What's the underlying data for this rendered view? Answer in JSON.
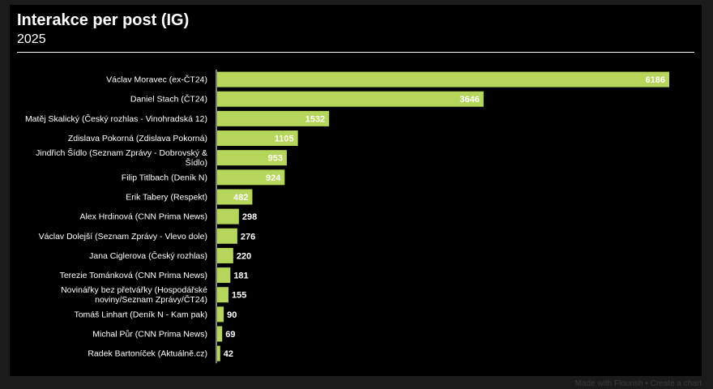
{
  "colors": {
    "background": "#000000",
    "bar": "#b5d65a",
    "label_inside": "#ffffff",
    "label_outside": "#ffffff",
    "text": "#ffffff"
  },
  "chart_data": {
    "type": "bar",
    "orientation": "horizontal",
    "title": "Interakce per post (IG)",
    "subtitle": "2025",
    "xlabel": "",
    "ylabel": "",
    "xlim": [
      0,
      6186
    ],
    "categories": [
      [
        "Václav Moravec (ex-ČT24)"
      ],
      [
        "Daniel Stach (ČT24)"
      ],
      [
        "Matěj Skalický (Český rozhlas - Vinohradská 12)"
      ],
      [
        "Zdislava Pokorná (Zdislava Pokorná)"
      ],
      [
        "Jindřich Šídlo (Seznam Zprávy - Dobrovský &",
        "Šídlo)"
      ],
      [
        "Filip Titlbach (Deník N)"
      ],
      [
        "Erik Tabery (Respekt)"
      ],
      [
        "Alex Hrdinová (CNN Prima News)"
      ],
      [
        "Václav Dolejší (Seznam Zprávy - Vlevo dole)"
      ],
      [
        "Jana Ciglerova (Český rozhlas)"
      ],
      [
        "Terezie Tománková (CNN Prima News)"
      ],
      [
        "Novinářky bez přetvářky (Hospodářské",
        "noviny/Seznam Zprávy/ČT24)"
      ],
      [
        "Tomáš Linhart (Deník N - Kam pak)"
      ],
      [
        "Michal Půr (CNN Prima News)"
      ],
      [
        "Radek Bartoníček (Aktuálně.cz)"
      ]
    ],
    "values": [
      6186,
      3646,
      1532,
      1105,
      953,
      924,
      482,
      298,
      276,
      220,
      181,
      155,
      90,
      69,
      42
    ]
  },
  "footer": {
    "credit": "Made with Flourish • Create a chart"
  }
}
